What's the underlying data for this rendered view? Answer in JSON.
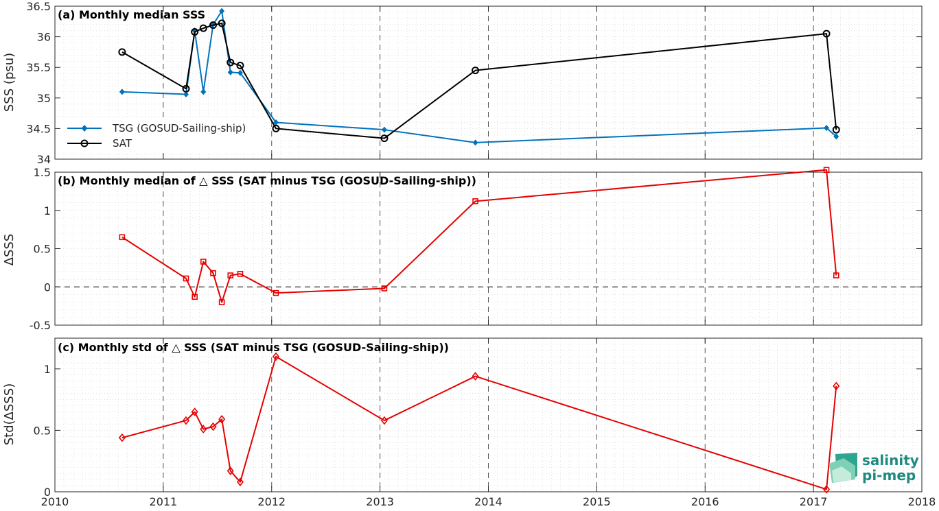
{
  "panels": {
    "a": {
      "title": "(a) Monthly median SSS",
      "ylabel": "SSS (psu)"
    },
    "b": {
      "title": "(b) Monthly median of △ SSS (SAT minus TSG (GOSUD-Sailing-ship))",
      "ylabel": "ΔSSS"
    },
    "c": {
      "title": "(c) Monthly std of △ SSS (SAT minus TSG (GOSUD-Sailing-ship))",
      "ylabel": "Std(ΔSSS)"
    }
  },
  "legend": {
    "tsg": "TSG (GOSUD-Sailing-ship)",
    "sat": "SAT"
  },
  "logo": {
    "line1": "salinity",
    "line2": "pi-mep"
  },
  "colors": {
    "tsg": "#0072bd",
    "sat": "#000000",
    "diff": "#e50000",
    "logo": "#1e8a7f"
  },
  "chart_data": [
    {
      "type": "line",
      "title": "(a) Monthly median SSS",
      "xlabel": "",
      "ylabel": "SSS (psu)",
      "xlim": [
        2010,
        2018
      ],
      "ylim": [
        34,
        36.5
      ],
      "xticks": [
        2010,
        2011,
        2012,
        2013,
        2014,
        2015,
        2016,
        2017,
        2018
      ],
      "yticks": [
        34,
        34.5,
        35,
        35.5,
        36,
        36.5
      ],
      "ytick_labels": [
        "34",
        "34.5",
        "35",
        "35.5",
        "36",
        "36.5"
      ],
      "grid": true,
      "legend_position": "lower-left",
      "series": [
        {
          "name": "TSG (GOSUD-Sailing-ship)",
          "marker": "diamond",
          "color": "#0072bd",
          "x": [
            2010.62,
            2011.21,
            2011.29,
            2011.37,
            2011.46,
            2011.54,
            2011.62,
            2011.71,
            2012.04,
            2013.04,
            2013.88,
            2017.12,
            2017.21
          ],
          "y": [
            35.1,
            35.06,
            36.1,
            35.1,
            36.2,
            36.42,
            35.42,
            35.41,
            34.6,
            34.48,
            34.27,
            34.51,
            34.37
          ]
        },
        {
          "name": "SAT",
          "marker": "circle",
          "color": "#000000",
          "x": [
            2010.62,
            2011.21,
            2011.29,
            2011.37,
            2011.46,
            2011.54,
            2011.62,
            2011.71,
            2012.04,
            2013.04,
            2013.88,
            2017.12,
            2017.21
          ],
          "y": [
            35.75,
            35.15,
            36.08,
            36.14,
            36.19,
            36.22,
            35.58,
            35.53,
            34.5,
            34.34,
            35.45,
            36.05,
            34.48
          ]
        }
      ]
    },
    {
      "type": "line",
      "title": "(b) Monthly median of △ SSS (SAT minus TSG (GOSUD-Sailing-ship))",
      "xlabel": "",
      "ylabel": "ΔSSS",
      "xlim": [
        2010,
        2018
      ],
      "ylim": [
        -0.5,
        1.5
      ],
      "xticks": [
        2010,
        2011,
        2012,
        2013,
        2014,
        2015,
        2016,
        2017,
        2018
      ],
      "yticks": [
        -0.5,
        0,
        0.5,
        1,
        1.5
      ],
      "ytick_labels": [
        "-0.5",
        "0",
        "0.5",
        "1",
        "1.5"
      ],
      "grid": true,
      "reference_line": 0,
      "series": [
        {
          "marker": "square",
          "color": "#e50000",
          "x": [
            2010.62,
            2011.21,
            2011.29,
            2011.37,
            2011.46,
            2011.54,
            2011.62,
            2011.71,
            2012.04,
            2013.04,
            2013.88,
            2017.12,
            2017.21
          ],
          "y": [
            0.65,
            0.11,
            -0.13,
            0.33,
            0.18,
            -0.2,
            0.15,
            0.17,
            -0.08,
            -0.02,
            1.12,
            1.53,
            0.15
          ]
        }
      ]
    },
    {
      "type": "line",
      "title": "(c) Monthly std of △ SSS (SAT minus TSG (GOSUD-Sailing-ship))",
      "xlabel": "",
      "ylabel": "Std(ΔSSS)",
      "xlim": [
        2010,
        2018
      ],
      "ylim": [
        0,
        1.25
      ],
      "xticks": [
        2010,
        2011,
        2012,
        2013,
        2014,
        2015,
        2016,
        2017,
        2018
      ],
      "xtick_labels": [
        "2010",
        "2011",
        "2012",
        "2013",
        "2014",
        "2015",
        "2016",
        "2017",
        "2018"
      ],
      "yticks": [
        0,
        0.5,
        1
      ],
      "ytick_labels": [
        "0",
        "0.5",
        "1"
      ],
      "grid": true,
      "series": [
        {
          "marker": "diamond-open",
          "color": "#e50000",
          "x": [
            2010.62,
            2011.21,
            2011.29,
            2011.37,
            2011.46,
            2011.54,
            2011.62,
            2011.71,
            2012.04,
            2013.04,
            2013.88,
            2017.12,
            2017.21
          ],
          "y": [
            0.44,
            0.58,
            0.65,
            0.51,
            0.53,
            0.59,
            0.17,
            0.08,
            1.1,
            0.58,
            0.94,
            0.02,
            0.86
          ]
        }
      ]
    }
  ]
}
